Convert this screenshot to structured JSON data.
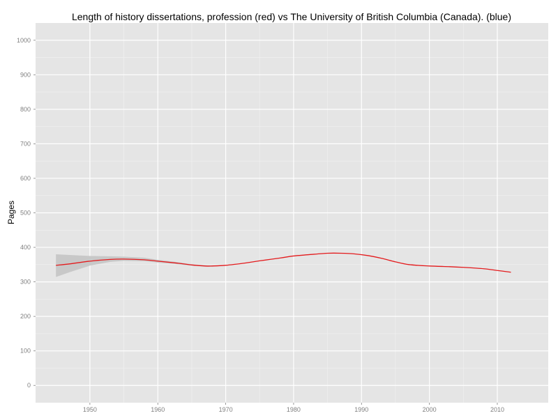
{
  "chart_data": {
    "type": "line",
    "title": "Length of history dissertations, profession (red) vs The University of British Columbia (Canada). (blue)",
    "xlabel": "",
    "ylabel": "Pages",
    "xlim": [
      1942.0,
      2017.5
    ],
    "ylim": [
      -50,
      1050
    ],
    "x_ticks": [
      1950,
      1960,
      1970,
      1980,
      1990,
      2000,
      2010
    ],
    "y_ticks": [
      0,
      100,
      200,
      300,
      400,
      500,
      600,
      700,
      800,
      900,
      1000
    ],
    "grid": true,
    "series": [
      {
        "color": "#e41a1c",
        "x": [
          1945,
          1947,
          1950,
          1953,
          1955,
          1958,
          1960,
          1963,
          1965,
          1967,
          1968,
          1970,
          1973,
          1975,
          1978,
          1980,
          1983,
          1985,
          1987,
          1989,
          1991,
          1993,
          1995,
          1997,
          2000,
          2003,
          2005,
          2008,
          2010,
          2012
        ],
        "y": [
          348,
          352,
          360,
          365,
          366,
          364,
          360,
          354,
          349,
          346,
          346,
          348,
          355,
          361,
          369,
          375,
          380,
          383,
          383,
          381,
          376,
          368,
          358,
          350,
          346,
          344,
          342,
          338,
          333,
          328
        ]
      }
    ],
    "confidence_band": {
      "color": "#c8c8c8",
      "x": [
        1945,
        1947,
        1950,
        1953,
        1955,
        1958,
        1960,
        1963,
        1965,
        1967,
        1968,
        1970
      ],
      "upper": [
        380,
        378,
        375,
        374,
        373,
        370,
        364,
        357,
        351,
        348,
        347,
        349
      ],
      "lower": [
        314,
        328,
        347,
        358,
        361,
        360,
        356,
        351,
        347,
        344,
        344,
        347
      ]
    }
  },
  "colors": {
    "panel": "#e5e5e5",
    "grid_major": "#ffffff",
    "grid_minor": "#f2f2f2"
  }
}
